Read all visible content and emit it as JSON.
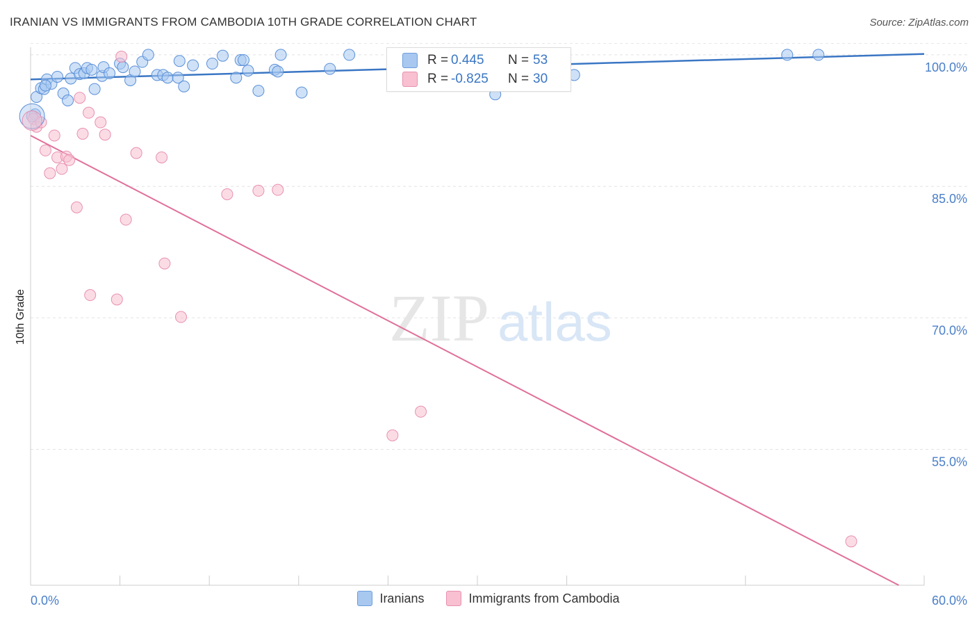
{
  "title": "IRANIAN VS IMMIGRANTS FROM CAMBODIA 10TH GRADE CORRELATION CHART",
  "source": "Source: ZipAtlas.com",
  "watermark": {
    "zip": "ZIP",
    "atlas": "atlas"
  },
  "legend_stats": [
    {
      "r_label": "R =",
      "r_value": "0.445",
      "n_label": "N =",
      "n_value": "53",
      "color": "#a8c8f0"
    },
    {
      "r_label": "R =",
      "r_value": "-0.825",
      "n_label": "N =",
      "n_value": "30",
      "color": "#f8c0d0"
    }
  ],
  "colors": {
    "blue": "#3a76c4",
    "blue_fill": "#a8c8f0",
    "pink": "#e0709a",
    "pink_fill": "#f8c0d0",
    "tick": "#4a7fc8"
  },
  "chart_data": {
    "type": "scatter",
    "title": "IRANIAN VS IMMIGRANTS FROM CAMBODIA 10TH GRADE CORRELATION CHART",
    "xlabel": "",
    "ylabel": "10th Grade",
    "xlim": [
      0,
      60
    ],
    "ylim": [
      39.5,
      101.5
    ],
    "x_ticks": [
      0,
      6,
      12,
      18,
      24,
      30,
      36,
      48,
      60
    ],
    "x_tick_labels": [
      "0.0%",
      "60.0%"
    ],
    "y_ticks": [
      55,
      70,
      85,
      100
    ],
    "y_tick_labels": [
      "55.0%",
      "70.0%",
      "85.0%",
      "100.0%"
    ],
    "grid": true,
    "legend_position": "bottom",
    "series": [
      {
        "name": "Iranians",
        "color": "#a8c8f0",
        "stroke": "#5a90d8",
        "trend": {
          "x": [
            0,
            60
          ],
          "y": [
            97.2,
            100.1
          ]
        },
        "points": [
          [
            0.3,
            93.2
          ],
          [
            0.4,
            95.2
          ],
          [
            0.7,
            96.2
          ],
          [
            0.9,
            96.1
          ],
          [
            1.1,
            97.2
          ],
          [
            1.4,
            96.7
          ],
          [
            1.8,
            97.5
          ],
          [
            2.2,
            95.6
          ],
          [
            2.5,
            94.8
          ],
          [
            2.7,
            97.3
          ],
          [
            3.0,
            98.5
          ],
          [
            3.3,
            97.8
          ],
          [
            3.6,
            97.9
          ],
          [
            3.8,
            98.5
          ],
          [
            4.1,
            98.3
          ],
          [
            4.3,
            96.1
          ],
          [
            4.8,
            97.6
          ],
          [
            4.9,
            98.6
          ],
          [
            5.3,
            97.9
          ],
          [
            6.0,
            99.0
          ],
          [
            6.2,
            98.6
          ],
          [
            6.7,
            97.1
          ],
          [
            7.0,
            98.1
          ],
          [
            7.5,
            99.2
          ],
          [
            7.9,
            100.0
          ],
          [
            8.5,
            97.7
          ],
          [
            8.9,
            97.7
          ],
          [
            9.2,
            97.4
          ],
          [
            9.9,
            97.4
          ],
          [
            10.0,
            99.3
          ],
          [
            10.3,
            96.4
          ],
          [
            10.9,
            98.8
          ],
          [
            12.2,
            99.0
          ],
          [
            12.9,
            99.9
          ],
          [
            13.8,
            97.4
          ],
          [
            14.1,
            99.4
          ],
          [
            14.3,
            99.4
          ],
          [
            14.6,
            98.2
          ],
          [
            15.3,
            95.9
          ],
          [
            16.4,
            98.3
          ],
          [
            16.6,
            98.1
          ],
          [
            16.8,
            100.0
          ],
          [
            18.2,
            95.7
          ],
          [
            20.1,
            98.4
          ],
          [
            21.4,
            100.0
          ],
          [
            25.4,
            99.4
          ],
          [
            31.2,
            95.5
          ],
          [
            35.6,
            100.0
          ],
          [
            36.5,
            97.7
          ],
          [
            50.8,
            100.0
          ],
          [
            52.9,
            100.0
          ],
          [
            0.1,
            93.0
          ],
          [
            1.0,
            96.5
          ]
        ]
      },
      {
        "name": "Immigrants from Cambodia",
        "color": "#f8c0d0",
        "stroke": "#e890b0",
        "trend": {
          "x": [
            0,
            60
          ],
          "y": [
            90.8,
            38.0
          ]
        },
        "points": [
          [
            0.2,
            92.7
          ],
          [
            0.4,
            91.8
          ],
          [
            0.7,
            92.3
          ],
          [
            1.0,
            89.1
          ],
          [
            1.3,
            86.5
          ],
          [
            1.6,
            90.8
          ],
          [
            1.8,
            88.3
          ],
          [
            2.1,
            87.0
          ],
          [
            2.4,
            88.4
          ],
          [
            2.6,
            88.0
          ],
          [
            3.1,
            82.6
          ],
          [
            3.3,
            95.1
          ],
          [
            3.5,
            91.0
          ],
          [
            3.9,
            93.4
          ],
          [
            4.0,
            72.6
          ],
          [
            4.7,
            92.3
          ],
          [
            5.0,
            90.9
          ],
          [
            5.8,
            72.1
          ],
          [
            6.1,
            99.8
          ],
          [
            6.4,
            81.2
          ],
          [
            7.1,
            88.8
          ],
          [
            8.8,
            88.3
          ],
          [
            9.0,
            76.2
          ],
          [
            10.1,
            70.1
          ],
          [
            13.2,
            84.1
          ],
          [
            15.3,
            84.5
          ],
          [
            16.6,
            84.6
          ],
          [
            24.3,
            56.6
          ],
          [
            26.2,
            59.3
          ],
          [
            55.1,
            44.5
          ]
        ]
      }
    ]
  },
  "legend_bottom": [
    {
      "label": "Iranians",
      "color": "#a8c8f0"
    },
    {
      "label": "Immigrants from Cambodia",
      "color": "#f8c0d0"
    }
  ]
}
